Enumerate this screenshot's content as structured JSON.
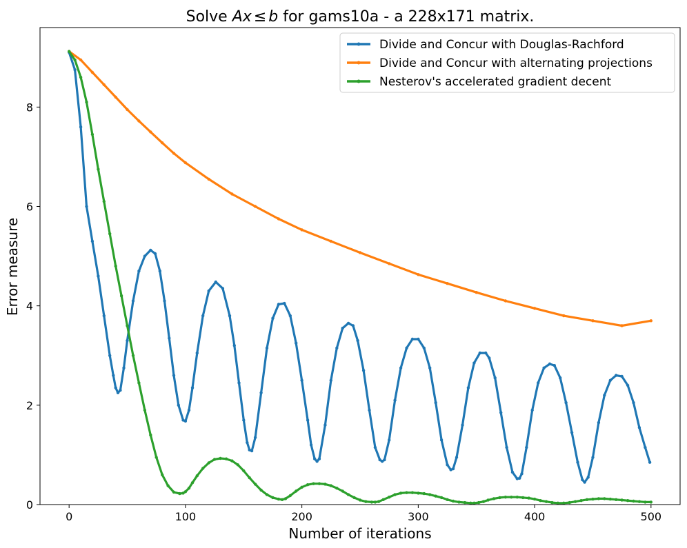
{
  "chart_data": {
    "type": "line",
    "title": "Solve Ax≤b for gams10a - a 228x171 matrix.",
    "title_parts": {
      "pre": "Solve ",
      "A": "A",
      "x": "x",
      "le": "≤",
      "b": "b",
      "post": " for gams10a - a 228x171 matrix."
    },
    "xlabel": "Number of iterations",
    "ylabel": "Error measure",
    "xlim": [
      -25,
      525
    ],
    "ylim": [
      0,
      9.6
    ],
    "xticks": [
      0,
      100,
      200,
      300,
      400,
      500
    ],
    "yticks": [
      0,
      2,
      4,
      6,
      8
    ],
    "grid": false,
    "legend_position": "top-right",
    "series": [
      {
        "name": "Divide and Concur with Douglas-Rachford",
        "color": "#1f77b4",
        "x": [
          0,
          5,
          10,
          15,
          20,
          25,
          30,
          35,
          38,
          40,
          42,
          44,
          47,
          50,
          55,
          60,
          65,
          70,
          74,
          78,
          82,
          86,
          90,
          94,
          98,
          100,
          103,
          106,
          110,
          115,
          120,
          126,
          132,
          138,
          142,
          146,
          150,
          153,
          155,
          157,
          160,
          165,
          170,
          175,
          180,
          185,
          190,
          195,
          200,
          205,
          208,
          211,
          213,
          215,
          220,
          225,
          230,
          235,
          240,
          244,
          248,
          253,
          258,
          263,
          267,
          269,
          271,
          275,
          280,
          285,
          290,
          295,
          300,
          305,
          310,
          315,
          320,
          325,
          328,
          330,
          333,
          338,
          343,
          348,
          353,
          358,
          361,
          366,
          371,
          376,
          381,
          385,
          387,
          389,
          393,
          398,
          403,
          408,
          413,
          417,
          422,
          427,
          432,
          437,
          441,
          443,
          446,
          450,
          455,
          460,
          465,
          470,
          475,
          480,
          485,
          490,
          495,
          499
        ],
        "values": [
          9.1,
          8.75,
          7.6,
          6.0,
          5.3,
          4.6,
          3.8,
          3.0,
          2.6,
          2.35,
          2.25,
          2.3,
          2.75,
          3.3,
          4.1,
          4.7,
          5.0,
          5.12,
          5.05,
          4.7,
          4.1,
          3.35,
          2.6,
          2.0,
          1.7,
          1.68,
          1.9,
          2.35,
          3.05,
          3.8,
          4.3,
          4.48,
          4.35,
          3.8,
          3.2,
          2.45,
          1.7,
          1.25,
          1.1,
          1.08,
          1.35,
          2.25,
          3.15,
          3.75,
          4.03,
          4.05,
          3.8,
          3.25,
          2.5,
          1.7,
          1.2,
          0.92,
          0.87,
          0.92,
          1.6,
          2.5,
          3.15,
          3.55,
          3.65,
          3.6,
          3.3,
          2.7,
          1.9,
          1.15,
          0.9,
          0.87,
          0.9,
          1.3,
          2.1,
          2.75,
          3.15,
          3.33,
          3.33,
          3.15,
          2.75,
          2.05,
          1.3,
          0.8,
          0.7,
          0.72,
          0.95,
          1.6,
          2.35,
          2.85,
          3.05,
          3.05,
          2.95,
          2.55,
          1.85,
          1.15,
          0.65,
          0.52,
          0.53,
          0.62,
          1.15,
          1.9,
          2.45,
          2.75,
          2.83,
          2.8,
          2.55,
          2.05,
          1.45,
          0.85,
          0.5,
          0.45,
          0.55,
          0.95,
          1.65,
          2.2,
          2.5,
          2.6,
          2.58,
          2.4,
          2.05,
          1.55,
          1.15,
          0.85
        ]
      },
      {
        "name": "Divide and Concur with alternating projections",
        "color": "#ff7f0e",
        "x": [
          0,
          10,
          20,
          30,
          40,
          50,
          60,
          70,
          80,
          90,
          100,
          120,
          140,
          160,
          180,
          200,
          225,
          250,
          275,
          300,
          325,
          350,
          375,
          400,
          425,
          450,
          475,
          500
        ],
        "values": [
          9.12,
          8.95,
          8.7,
          8.45,
          8.2,
          7.95,
          7.72,
          7.5,
          7.28,
          7.07,
          6.88,
          6.55,
          6.25,
          6.0,
          5.75,
          5.53,
          5.3,
          5.07,
          4.85,
          4.63,
          4.45,
          4.27,
          4.1,
          3.95,
          3.8,
          3.7,
          3.6,
          3.7
        ]
      },
      {
        "name": "Nesterov's accelerated gradient decent",
        "color": "#2ca02c",
        "x": [
          0,
          5,
          10,
          15,
          20,
          25,
          30,
          35,
          40,
          45,
          50,
          55,
          60,
          65,
          70,
          75,
          80,
          85,
          90,
          95,
          98,
          100,
          103,
          106,
          110,
          115,
          120,
          125,
          130,
          135,
          140,
          145,
          150,
          155,
          160,
          165,
          170,
          175,
          180,
          183,
          186,
          190,
          195,
          200,
          205,
          210,
          215,
          220,
          225,
          230,
          235,
          240,
          245,
          250,
          255,
          260,
          263,
          266,
          270,
          275,
          280,
          285,
          290,
          295,
          300,
          305,
          310,
          315,
          320,
          325,
          330,
          335,
          340,
          345,
          348,
          352,
          356,
          360,
          365,
          370,
          375,
          380,
          385,
          390,
          395,
          400,
          405,
          410,
          415,
          420,
          425,
          430,
          435,
          440,
          445,
          450,
          455,
          460,
          465,
          470,
          475,
          480,
          485,
          490,
          495,
          500
        ],
        "values": [
          9.12,
          8.95,
          8.6,
          8.1,
          7.45,
          6.75,
          6.1,
          5.45,
          4.8,
          4.2,
          3.6,
          3.0,
          2.45,
          1.9,
          1.4,
          0.95,
          0.6,
          0.38,
          0.25,
          0.22,
          0.23,
          0.26,
          0.33,
          0.44,
          0.58,
          0.73,
          0.84,
          0.91,
          0.93,
          0.92,
          0.88,
          0.8,
          0.68,
          0.54,
          0.41,
          0.29,
          0.2,
          0.14,
          0.11,
          0.1,
          0.12,
          0.18,
          0.27,
          0.35,
          0.4,
          0.42,
          0.42,
          0.41,
          0.38,
          0.33,
          0.27,
          0.2,
          0.14,
          0.09,
          0.06,
          0.05,
          0.05,
          0.06,
          0.1,
          0.15,
          0.2,
          0.23,
          0.24,
          0.24,
          0.23,
          0.22,
          0.2,
          0.17,
          0.14,
          0.1,
          0.07,
          0.05,
          0.04,
          0.03,
          0.03,
          0.04,
          0.06,
          0.09,
          0.12,
          0.14,
          0.15,
          0.15,
          0.15,
          0.14,
          0.13,
          0.11,
          0.08,
          0.06,
          0.04,
          0.03,
          0.03,
          0.04,
          0.06,
          0.08,
          0.1,
          0.11,
          0.12,
          0.12,
          0.11,
          0.1,
          0.09,
          0.08,
          0.07,
          0.06,
          0.05,
          0.05
        ]
      }
    ]
  }
}
